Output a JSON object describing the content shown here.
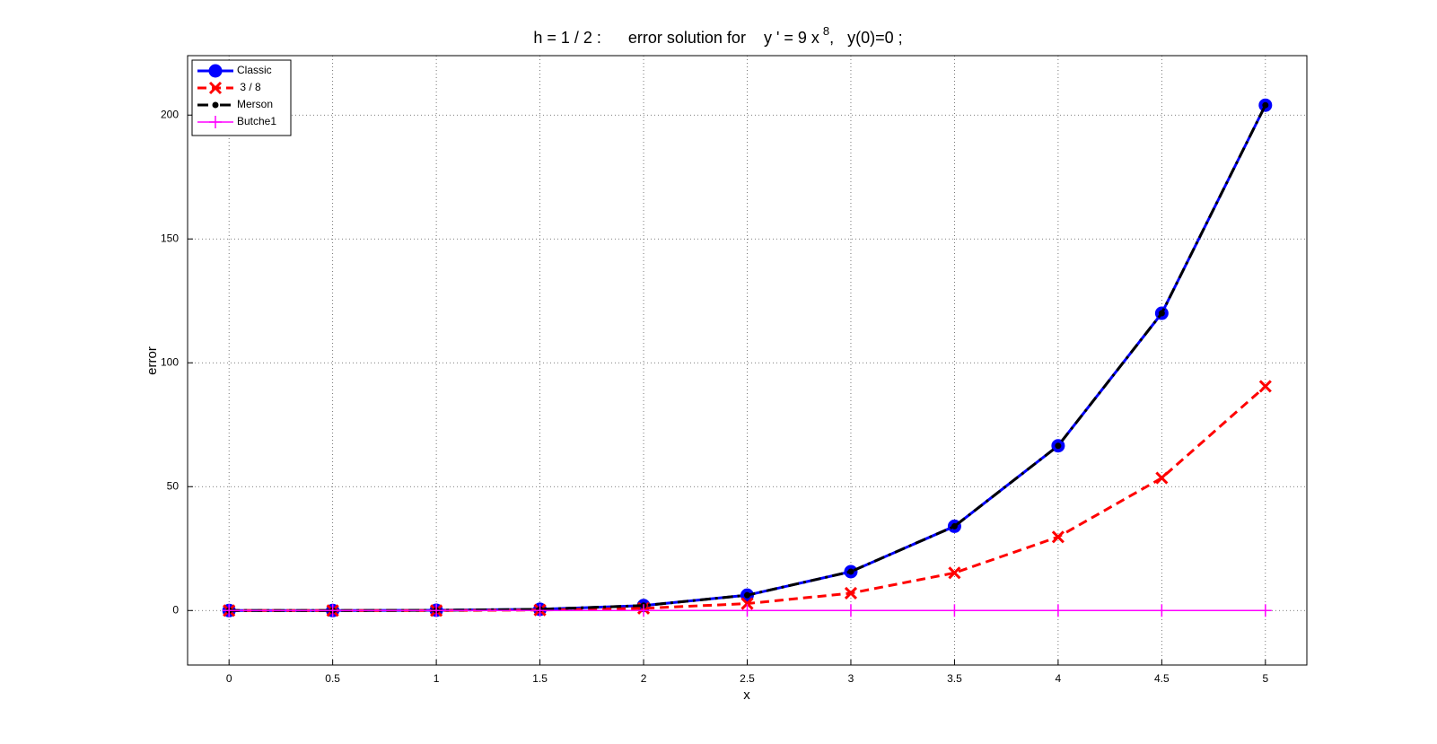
{
  "chart_data": {
    "type": "line",
    "title": "h = 1 / 2 :      error solution for    y ' = 9 x",
    "title_exponent": "8",
    "title_end": ",   y(0)=0 ;",
    "x_label": "x",
    "y_label": "error",
    "x": [
      0,
      0.5,
      1,
      1.5,
      2,
      2.5,
      3,
      3.5,
      4,
      4.5,
      5
    ],
    "xlim": [
      -0.2,
      5.2
    ],
    "xticks": [
      0,
      0.5,
      1,
      1.5,
      2,
      2.5,
      3,
      3.5,
      4,
      4.5,
      5
    ],
    "ylim": [
      -22,
      224
    ],
    "yticks": [
      0,
      50,
      100,
      150,
      200
    ],
    "grid": true,
    "legend_position": "upper-left",
    "series": [
      {
        "name": "Classic",
        "color": "#0000ff",
        "line_style": "solid",
        "line_width": 3,
        "marker": "o",
        "values": [
          0,
          0,
          0.1,
          0.5,
          2,
          6.2,
          15.7,
          34,
          66.5,
          120,
          204
        ]
      },
      {
        "name": " 3 / 8",
        "color": "#ff0000",
        "line_style": "dashed",
        "line_width": 3,
        "marker": "x",
        "values": [
          0,
          0,
          0,
          0.2,
          0.9,
          2.8,
          7,
          15.2,
          29.7,
          53.5,
          90.5
        ]
      },
      {
        "name": "Merson",
        "color": "#000000",
        "line_style": "dashdot",
        "line_width": 3,
        "marker": ".",
        "values": [
          0,
          0,
          0.1,
          0.5,
          2,
          6.2,
          15.7,
          34,
          66.5,
          120,
          204
        ]
      },
      {
        "name": "Butche1",
        "color": "#ff00ff",
        "line_style": "solid",
        "line_width": 1.5,
        "marker": "+",
        "values": [
          0,
          0,
          0,
          0,
          0,
          0,
          0,
          0,
          0,
          0,
          0
        ]
      }
    ]
  }
}
